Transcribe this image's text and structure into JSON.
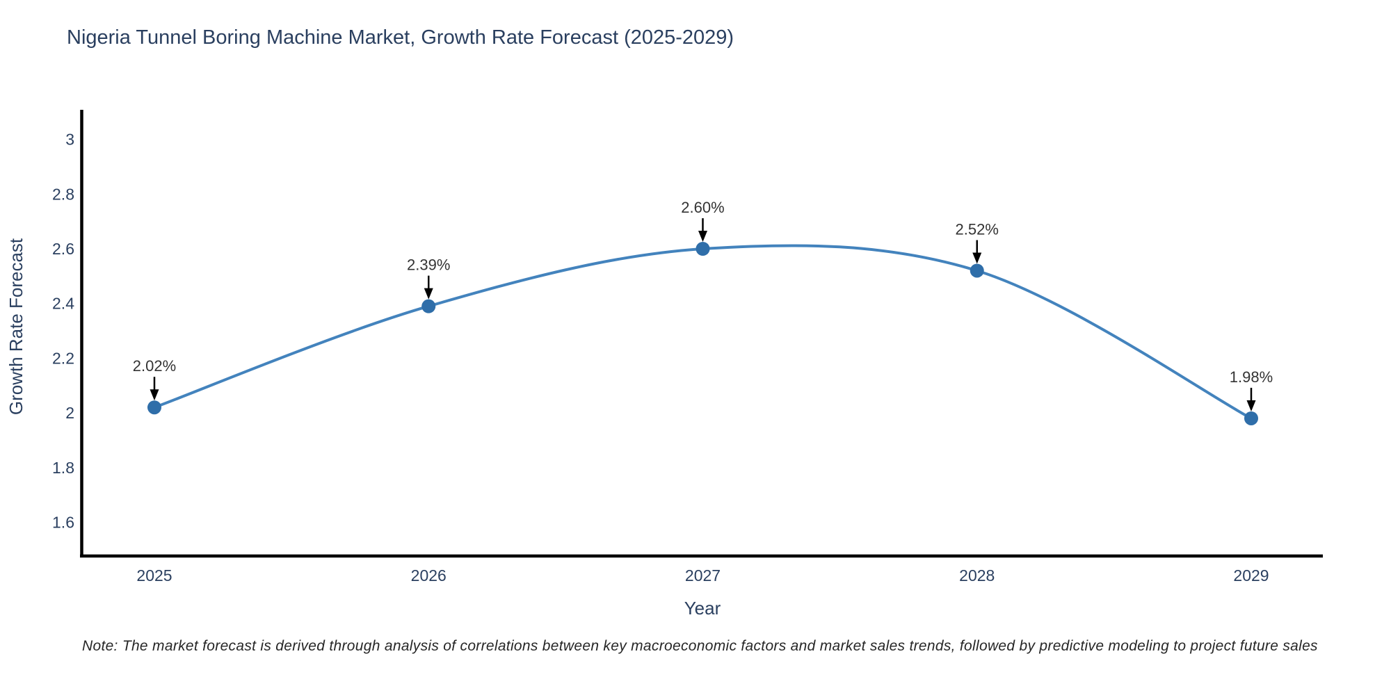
{
  "title": "Nigeria Tunnel Boring Machine Market, Growth Rate Forecast (2025-2029)",
  "x_axis": {
    "label": "Year",
    "ticks": [
      "2025",
      "2026",
      "2027",
      "2028",
      "2029"
    ]
  },
  "y_axis": {
    "label": "Growth Rate Forecast",
    "ticks": [
      "3",
      "2.8",
      "2.6",
      "2.4",
      "2.2",
      "2",
      "1.8",
      "1.6"
    ]
  },
  "note": "Note: The market forecast is derived through analysis of correlations between key macroeconomic factors and market sales trends, followed by predictive modeling to project future sales",
  "colors": {
    "line": "#4383bd",
    "marker": "#2f6ea9",
    "axis": "#000000",
    "text": "#2a3f5f",
    "annotation": "#333333",
    "arrow": "#000000",
    "background": "#ffffff"
  },
  "chart_data": {
    "type": "line",
    "title": "Nigeria Tunnel Boring Machine Market, Growth Rate Forecast (2025-2029)",
    "xlabel": "Year",
    "ylabel": "Growth Rate Forecast",
    "x": [
      2025,
      2026,
      2027,
      2028,
      2029
    ],
    "values": [
      2.02,
      2.39,
      2.6,
      2.52,
      1.98
    ],
    "point_labels": [
      "2.02%",
      "2.39%",
      "2.60%",
      "2.52%",
      "1.98%"
    ],
    "y_ticks": [
      3,
      2.8,
      2.6,
      2.4,
      2.2,
      2,
      1.8,
      1.6
    ],
    "ylim": [
      1.48,
      3.11
    ],
    "line_shape": "spline",
    "grid": false,
    "legend": "none",
    "annotation_style": "down-arrow-to-point"
  }
}
